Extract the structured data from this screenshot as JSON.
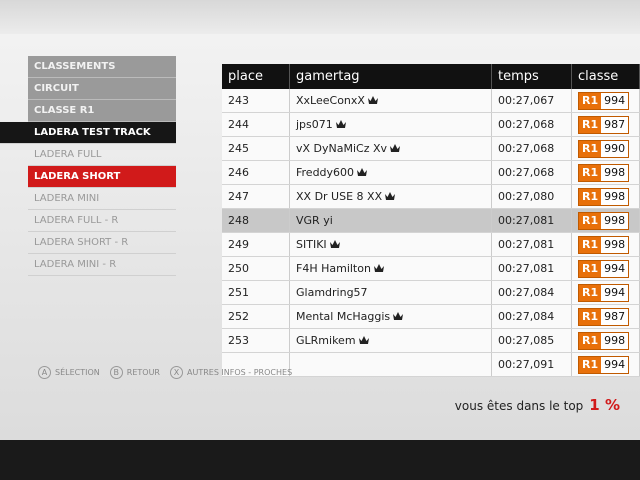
{
  "menu": [
    {
      "label": "CLASSEMENTS",
      "style": "head"
    },
    {
      "label": "CIRCUIT",
      "style": "head"
    },
    {
      "label": "CLASSE R1",
      "style": "head"
    },
    {
      "label": "LADERA TEST TRACK",
      "style": "sel"
    },
    {
      "label": "LADERA FULL",
      "style": "normal"
    },
    {
      "label": "LADERA SHORT",
      "style": "red"
    },
    {
      "label": "LADERA MINI",
      "style": "normal"
    },
    {
      "label": "LADERA FULL - R",
      "style": "normal"
    },
    {
      "label": "LADERA SHORT - R",
      "style": "normal"
    },
    {
      "label": "LADERA MINI - R",
      "style": "normal"
    }
  ],
  "table": {
    "headers": [
      "place",
      "gamertag",
      "temps",
      "classe"
    ],
    "rows": [
      {
        "place": "243",
        "gamertag": "XxLeeConxX",
        "crown": true,
        "time": "00:27,067",
        "class": "R1",
        "rating": "994"
      },
      {
        "place": "244",
        "gamertag": "jps071",
        "crown": true,
        "time": "00:27,068",
        "class": "R1",
        "rating": "987"
      },
      {
        "place": "245",
        "gamertag": "vX DyNaMiCz Xv",
        "crown": true,
        "time": "00:27,068",
        "class": "R1",
        "rating": "990"
      },
      {
        "place": "246",
        "gamertag": "Freddy600",
        "crown": true,
        "time": "00:27,068",
        "class": "R1",
        "rating": "998"
      },
      {
        "place": "247",
        "gamertag": "XX Dr USE 8 XX",
        "crown": true,
        "time": "00:27,080",
        "class": "R1",
        "rating": "998"
      },
      {
        "place": "248",
        "gamertag": "VGR yi",
        "crown": false,
        "highlight": true,
        "time": "00:27,081",
        "class": "R1",
        "rating": "998"
      },
      {
        "place": "249",
        "gamertag": "SITIKI",
        "crown": true,
        "time": "00:27,081",
        "class": "R1",
        "rating": "998"
      },
      {
        "place": "250",
        "gamertag": "F4H Hamilton",
        "crown": true,
        "time": "00:27,081",
        "class": "R1",
        "rating": "994"
      },
      {
        "place": "251",
        "gamertag": "Glamdring57",
        "crown": false,
        "time": "00:27,084",
        "class": "R1",
        "rating": "994"
      },
      {
        "place": "252",
        "gamertag": "Mental McHaggis",
        "crown": true,
        "time": "00:27,084",
        "class": "R1",
        "rating": "987"
      },
      {
        "place": "253",
        "gamertag": "GLRmikem",
        "crown": true,
        "time": "00:27,085",
        "class": "R1",
        "rating": "998"
      },
      {
        "time": "00:27,091",
        "class": "R1",
        "rating": "994",
        "crown": false
      }
    ]
  },
  "footer": [
    {
      "button": "A",
      "label": "SÉLECTION"
    },
    {
      "button": "B",
      "label": "RETOUR"
    },
    {
      "button": "X",
      "label": "AUTRES INFOS - PROCHES"
    }
  ],
  "summary": {
    "text": "vous êtes dans le top",
    "percent": "1 %"
  }
}
